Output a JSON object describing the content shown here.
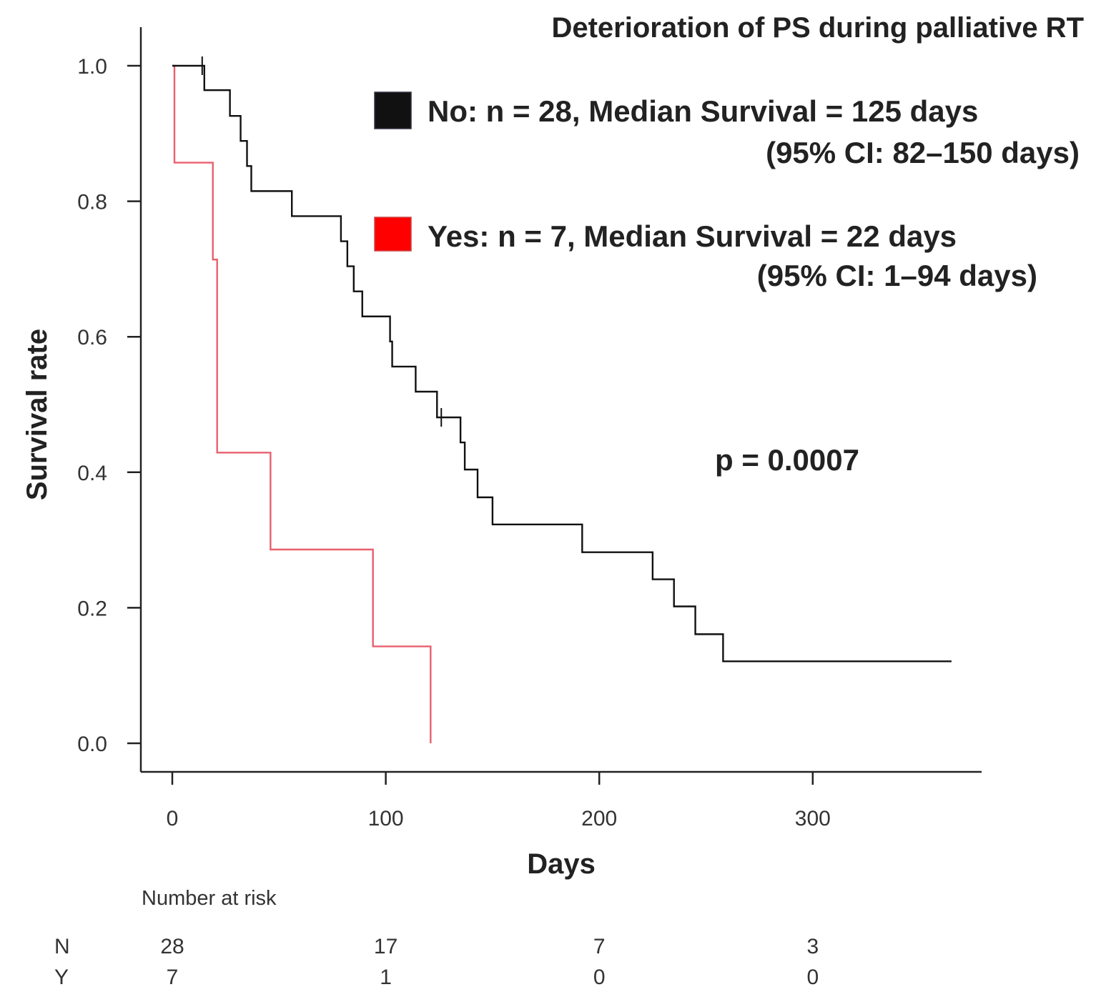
{
  "chart_data": {
    "type": "line",
    "subtype": "kaplan-meier",
    "title": "Deterioration  of PS during palliative RT",
    "xlabel": "Days",
    "ylabel": "Survival rate",
    "xlim": [
      -15,
      380
    ],
    "ylim": [
      -0.04,
      1.04
    ],
    "xticks": [
      0,
      100,
      200,
      300
    ],
    "yticks": [
      0.0,
      0.2,
      0.4,
      0.6,
      0.8,
      1.0
    ],
    "xtick_labels": [
      "0",
      "100",
      "200",
      "300"
    ],
    "ytick_labels": [
      "0.0",
      "0.2",
      "0.4",
      "0.6",
      "0.8",
      "1.0"
    ],
    "grid": false,
    "series": [
      {
        "name": "No",
        "color": "#111111",
        "legend_line1": "No: n = 28, Median Survival = 125 days",
        "legend_line2": "(95% CI: 82–150 days)",
        "steps": [
          [
            0,
            1.0
          ],
          [
            15,
            0.964
          ],
          [
            27,
            0.926
          ],
          [
            32,
            0.889
          ],
          [
            35,
            0.852
          ],
          [
            37,
            0.815
          ],
          [
            56,
            0.778
          ],
          [
            79,
            0.741
          ],
          [
            82,
            0.704
          ],
          [
            85,
            0.667
          ],
          [
            89,
            0.63
          ],
          [
            102,
            0.593
          ],
          [
            103,
            0.556
          ],
          [
            114,
            0.519
          ],
          [
            124,
            0.481
          ],
          [
            135,
            0.444
          ],
          [
            137,
            0.404
          ],
          [
            143,
            0.363
          ],
          [
            150,
            0.323
          ],
          [
            192,
            0.282
          ],
          [
            225,
            0.242
          ],
          [
            235,
            0.202
          ],
          [
            245,
            0.161
          ],
          [
            258,
            0.121
          ],
          [
            365,
            0.121
          ]
        ],
        "censored": [
          [
            14,
            1.0
          ],
          [
            126,
            0.481
          ]
        ]
      },
      {
        "name": "Yes",
        "color": "#e8606e",
        "swatch_color": "#ff0000",
        "legend_line1": "Yes: n = 7, Median Survival = 22 days",
        "legend_line2": "(95% CI: 1–94 days)",
        "steps": [
          [
            0,
            1.0
          ],
          [
            1,
            0.857
          ],
          [
            19,
            0.714
          ],
          [
            21,
            0.429
          ],
          [
            46,
            0.286
          ],
          [
            94,
            0.143
          ],
          [
            121,
            0.0
          ]
        ],
        "censored": []
      }
    ],
    "annotation": "p = 0.0007",
    "risk_table": {
      "title": "Number at risk",
      "rows": [
        {
          "label": "N",
          "values": [
            "28",
            "17",
            "7",
            "3"
          ]
        },
        {
          "label": "Y",
          "values": [
            "7",
            "1",
            "0",
            "0"
          ]
        }
      ]
    }
  }
}
